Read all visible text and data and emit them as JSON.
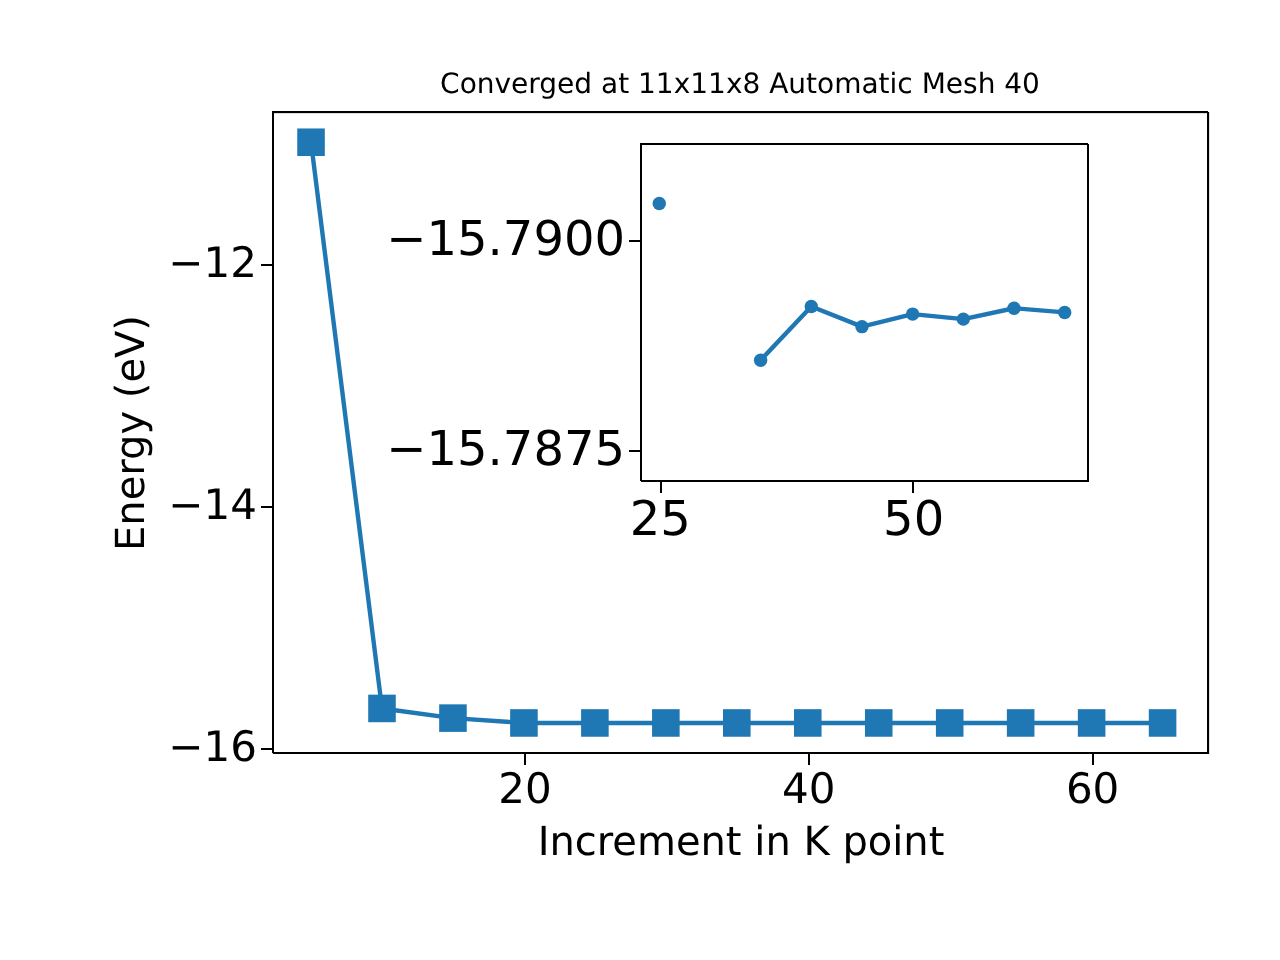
{
  "chart_data": [
    {
      "type": "line",
      "title": "Converged at 11x11x8 Automatic Mesh 40",
      "xlabel": "Increment in K point",
      "ylabel": "Energy (eV)",
      "x": [
        5,
        10,
        15,
        20,
        25,
        30,
        35,
        40,
        45,
        50,
        55,
        60,
        65
      ],
      "series": [
        {
          "color": "#1f77b4",
          "values": [
            -10.99,
            -15.67,
            -15.75,
            -15.79,
            -15.79,
            -15.79,
            -15.79,
            -15.79,
            -15.79,
            -15.79,
            -15.79,
            -15.79,
            -15.79
          ]
        }
      ],
      "xlim": [
        2.25,
        68.2
      ],
      "ylim": [
        -16.03,
        -10.74
      ],
      "xticks": [
        20,
        40,
        60
      ],
      "yticks": [
        -16,
        -14,
        -12
      ],
      "marker": "square",
      "line_style": "solid",
      "grid": false
    },
    {
      "type": "line",
      "x": [
        25,
        30,
        35,
        40,
        45,
        50,
        55,
        60,
        65
      ],
      "series": [
        {
          "color": "#1f77b4",
          "values": [
            -15.79044,
            null,
            -15.78857,
            -15.78921,
            -15.78897,
            -15.78912,
            -15.78906,
            -15.78919,
            -15.78914
          ]
        }
      ],
      "xlim": [
        23.1,
        67.3
      ],
      "ylim": [
        -15.78714,
        -15.79115
      ],
      "xticks": [
        25,
        50
      ],
      "yticks": [
        {
          "value": -15.79,
          "label": "−15.7900"
        },
        {
          "value": -15.7875,
          "label": "−15.7875"
        }
      ],
      "marker": "circle",
      "line_style": "solid",
      "grid": false
    }
  ]
}
